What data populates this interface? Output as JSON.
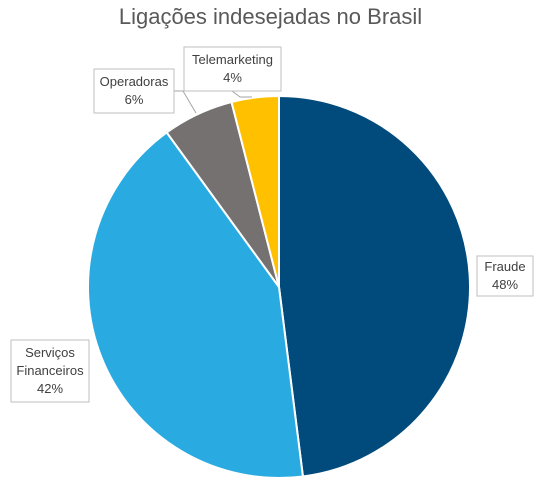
{
  "chart_data": {
    "type": "pie",
    "title": "Ligações indesejadas no Brasil",
    "slices": [
      {
        "name": "Fraude",
        "percent_label": "48%",
        "value": 48,
        "color": "#004a7c",
        "label_lines": [
          "Fraude",
          "48%"
        ]
      },
      {
        "name": "Serviços Financeiros",
        "percent_label": "42%",
        "value": 42,
        "color": "#29abe2",
        "label_lines": [
          "Serviços",
          "Financeiros",
          "42%"
        ]
      },
      {
        "name": "Operadoras",
        "percent_label": "6%",
        "value": 6,
        "color": "#767171",
        "label_lines": [
          "Operadoras",
          "6%"
        ]
      },
      {
        "name": "Telemarketing",
        "percent_label": "4%",
        "value": 4,
        "color": "#ffc000",
        "label_lines": [
          "Telemarketing",
          "4%"
        ]
      }
    ]
  }
}
